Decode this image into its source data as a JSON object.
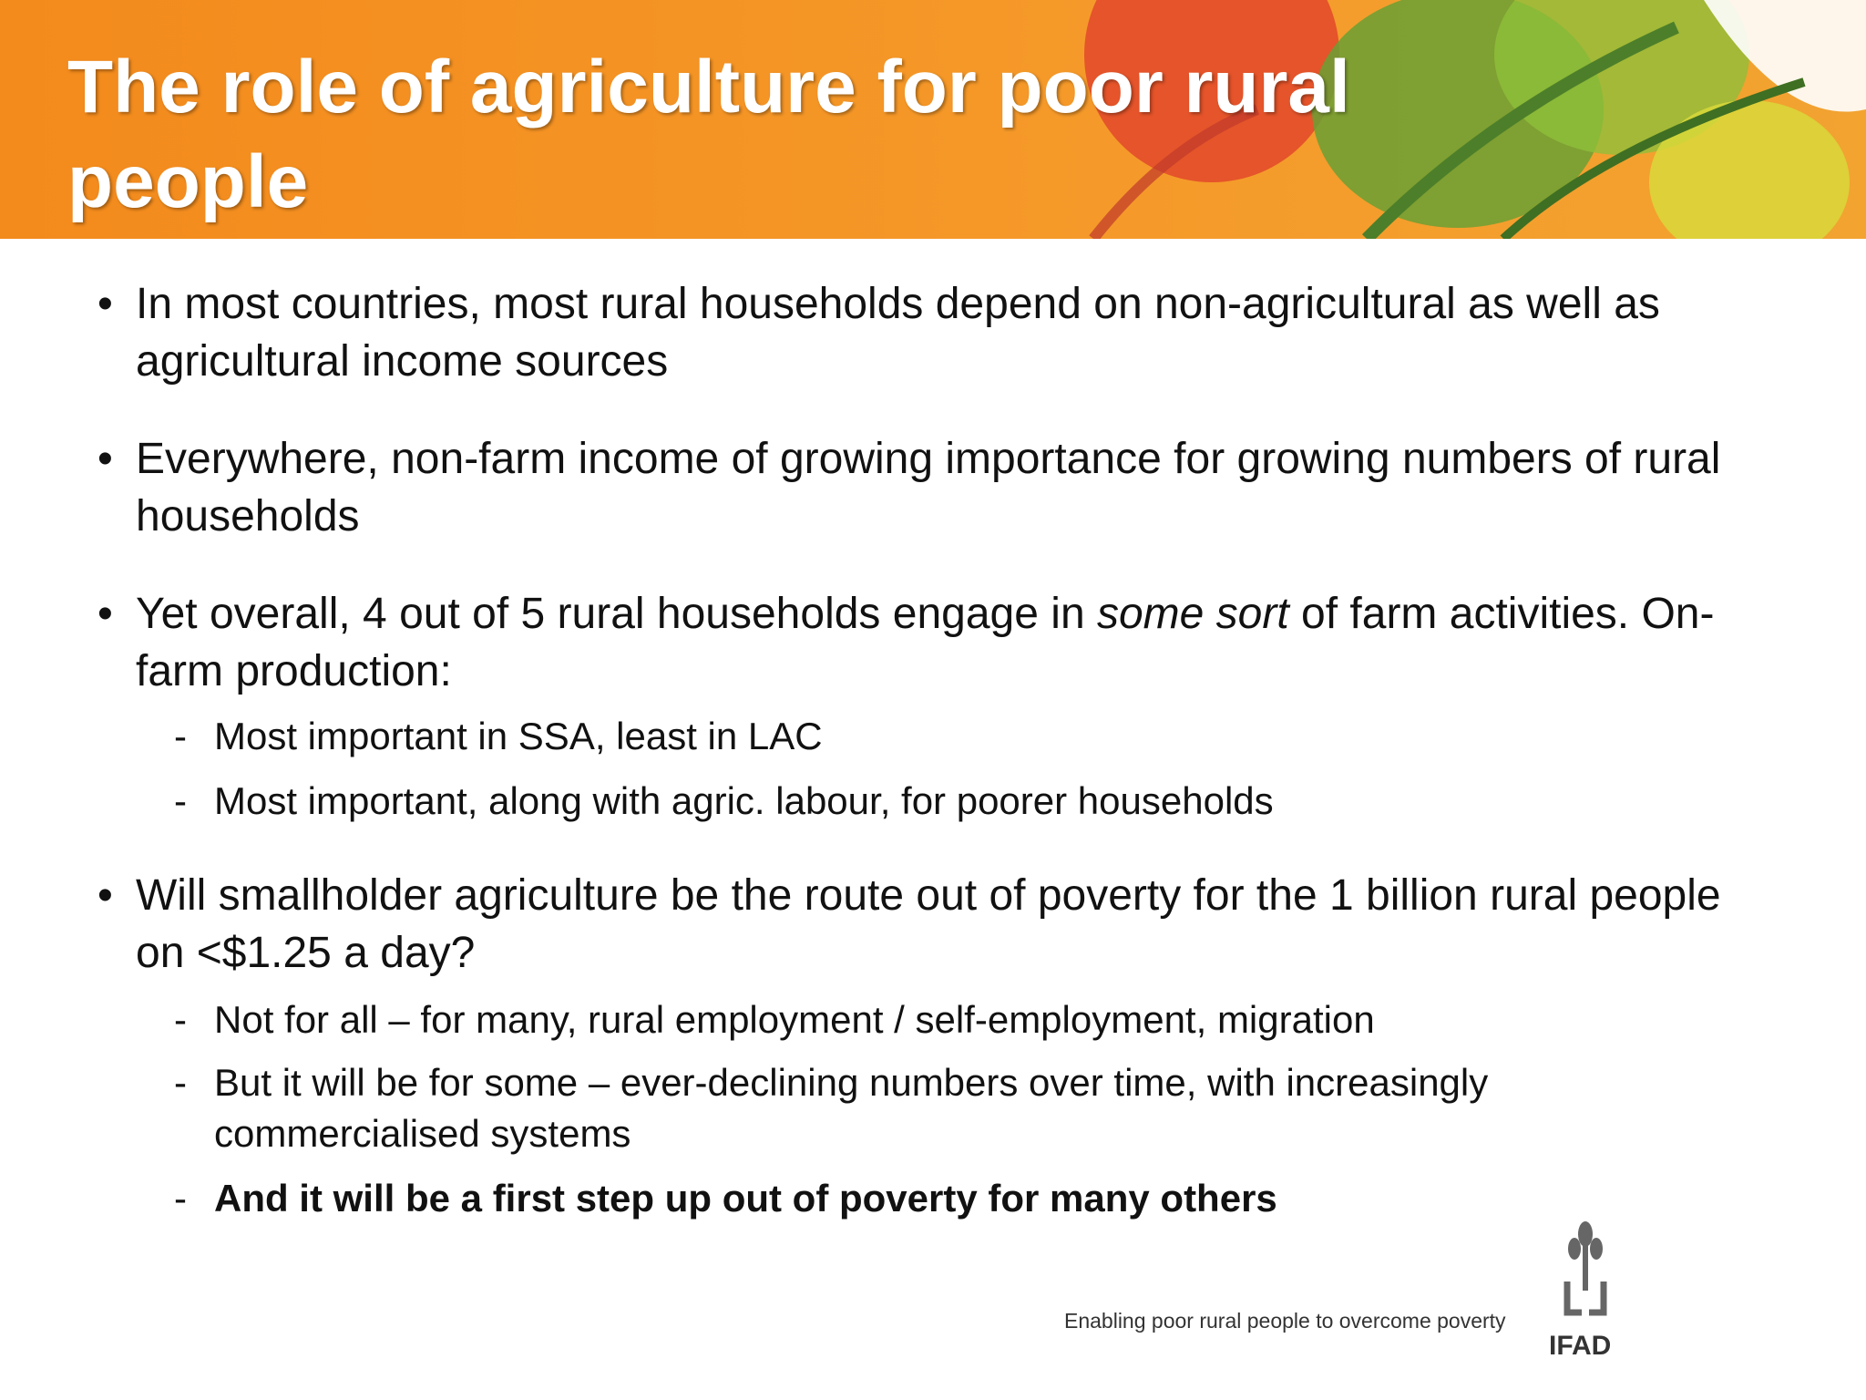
{
  "header": {
    "title": "The role of agriculture for poor rural people"
  },
  "bullets": [
    {
      "text": [
        "In most countries, most rural households depend on non-agricultural as well as agricultural income sources"
      ],
      "subitems": []
    },
    {
      "text": [
        "Everywhere, non-farm income of growing importance for growing numbers of rural households"
      ],
      "subitems": []
    },
    {
      "text": [
        "Yet overall, 4 out of 5 rural households engage in ",
        "some sort",
        " of farm activities. On-farm production:"
      ],
      "subitems": [
        "Most important in SSA, least in LAC",
        "Most important, along with agric. labour, for poorer households"
      ]
    },
    {
      "text": [
        "Will smallholder agriculture be the route out of poverty for the 1 billion rural people on <$1.25 a day?"
      ],
      "subitems": [
        "Not for all – for many, rural employment / self-employment, migration",
        "But it will be for some – ever-declining numbers over time, with increasingly commercialised systems",
        "And it will be a first step up out of poverty for many others"
      ]
    }
  ],
  "footer": {
    "tagline": "Enabling poor rural people to overcome poverty",
    "logo": "IFAD"
  }
}
